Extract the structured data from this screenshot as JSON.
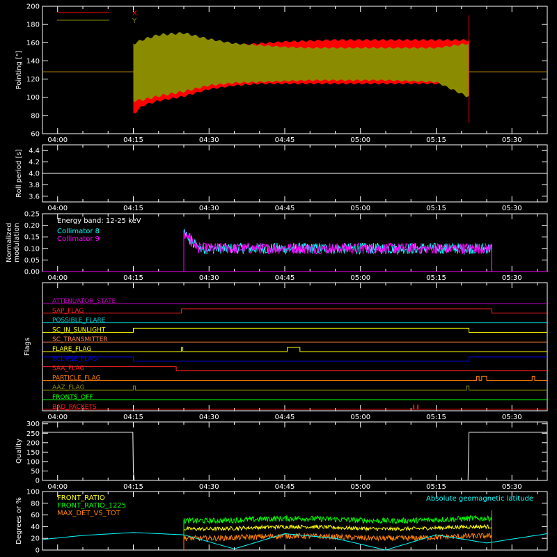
{
  "time_ticks": [
    "04:00",
    "04:15",
    "04:30",
    "04:45",
    "05:00",
    "05:15",
    "05:30"
  ],
  "chart_data": [
    {
      "type": "line",
      "ylabel": "Pointing [\"]",
      "ylim": [
        60,
        200
      ],
      "yticks": [
        60,
        80,
        100,
        120,
        140,
        160,
        180,
        200
      ],
      "x_unit": "minutes after 04:00",
      "xlim": [
        -3,
        97
      ],
      "legend": {
        "placement": "top-left",
        "entries": [
          {
            "name": "X",
            "color": "#ff0000"
          },
          {
            "name": "Y",
            "color": "#8b8b00"
          }
        ]
      },
      "series": [
        {
          "name": "X",
          "color": "#ff0000",
          "baseline": 128,
          "active_range": [
            15.0,
            81.5
          ],
          "envelope_x": [
            15,
            17,
            20,
            25,
            30,
            35,
            40,
            45,
            50,
            55,
            60,
            65,
            70,
            75,
            81
          ],
          "envelope_upper": [
            160,
            150,
            150,
            152,
            155,
            158,
            160,
            162,
            163,
            164,
            164,
            164,
            164,
            164,
            164
          ],
          "envelope_lower": [
            80,
            90,
            95,
            100,
            108,
            112,
            114,
            114,
            114,
            114,
            114,
            114,
            114,
            114,
            110
          ]
        },
        {
          "name": "Y",
          "color": "#8b8b00",
          "baseline": 128,
          "active_range": [
            15.0,
            81.5
          ],
          "envelope_x": [
            15,
            17,
            20,
            25,
            30,
            35,
            40,
            45,
            50,
            55,
            60,
            65,
            70,
            75,
            81
          ],
          "envelope_upper": [
            160,
            165,
            170,
            172,
            165,
            160,
            158,
            156,
            155,
            155,
            155,
            155,
            155,
            155,
            160
          ],
          "envelope_lower": [
            95,
            96,
            100,
            105,
            112,
            115,
            116,
            117,
            118,
            118,
            118,
            118,
            117,
            116,
            100
          ]
        }
      ]
    },
    {
      "type": "line",
      "ylabel": "Roll period [s]",
      "ylim": [
        3.5,
        4.5
      ],
      "yticks": [
        3.6,
        3.8,
        4.0,
        4.2,
        4.4
      ],
      "x_unit": "minutes after 04:00",
      "xlim": [
        -3,
        97
      ],
      "series": [
        {
          "name": "roll",
          "color": "#ffffff",
          "x": [
            -3,
            97
          ],
          "values": [
            4.0,
            4.0
          ]
        }
      ]
    },
    {
      "type": "line",
      "ylabel": "Normalized modulation",
      "ylim": [
        0,
        0.25
      ],
      "yticks": [
        0.0,
        0.05,
        0.1,
        0.15,
        0.2,
        0.25
      ],
      "x_unit": "minutes after 04:00",
      "xlim": [
        -3,
        97
      ],
      "annotation": "Energy band: 12-25 keV",
      "legend": {
        "placement": "top-left",
        "entries": [
          {
            "name": "Collimator 8",
            "color": "#00ffff"
          },
          {
            "name": "Collimator 9",
            "color": "#ff00ff"
          }
        ]
      },
      "series": [
        {
          "name": "Collimator 8",
          "color": "#00ffff",
          "active_range": [
            25.0,
            86.0
          ],
          "mean": 0.1,
          "spread": 0.03
        },
        {
          "name": "Collimator 9",
          "color": "#ff00ff",
          "active_range": [
            25.0,
            86.0
          ],
          "mean": 0.1,
          "spread": 0.03
        }
      ]
    },
    {
      "type": "line",
      "ylabel": "Flags",
      "x_unit": "minutes after 04:00",
      "xlim": [
        -3,
        97
      ],
      "flags": [
        {
          "name": "ATTENUATOR_STATE",
          "color": "#c000c0",
          "transitions": []
        },
        {
          "name": "SAP_FLAG",
          "color": "#ff2020",
          "transitions": [
            [
              24.5,
              1
            ],
            [
              86.0,
              0
            ]
          ]
        },
        {
          "name": "POSSIBLE_FLARE",
          "color": "#00d0d0",
          "transitions": []
        },
        {
          "name": "SC_IN_SUNLIGHT",
          "color": "#ffff00",
          "transitions": [
            [
              15.0,
              1
            ],
            [
              81.5,
              0
            ]
          ]
        },
        {
          "name": "SC_TRANSMITTER",
          "color": "#ff8040",
          "transitions": []
        },
        {
          "name": "FLARE_FLAG",
          "color": "#ffff00",
          "transitions": [
            [
              24.5,
              1
            ],
            [
              24.8,
              0
            ],
            [
              45.5,
              1
            ],
            [
              48.0,
              0
            ]
          ]
        },
        {
          "name": "ECLIPSE_FLAG",
          "color": "#0000ff",
          "transitions": [
            [
              15.0,
              0
            ],
            [
              81.5,
              1
            ]
          ]
        },
        {
          "name": "SAA_FLAG",
          "color": "#ff2020",
          "transitions": [
            [
              23.5,
              0
            ]
          ]
        },
        {
          "name": "PARTICLE_FLAG",
          "color": "#ff8000",
          "transitions": [
            [
              83.0,
              1
            ],
            [
              83.5,
              0
            ],
            [
              84.0,
              1
            ],
            [
              85.0,
              0
            ],
            [
              94.0,
              1
            ],
            [
              94.5,
              0
            ]
          ]
        },
        {
          "name": "AAZ_FLAG",
          "color": "#8b8b00",
          "transitions": [
            [
              15.0,
              1
            ],
            [
              15.4,
              0
            ],
            [
              81.0,
              1
            ],
            [
              81.5,
              0
            ]
          ]
        },
        {
          "name": "FRONTS_OFF",
          "color": "#00ff00",
          "transitions": []
        },
        {
          "name": "BAD_PACKETS",
          "color": "#ff2020",
          "transitions": [
            [
              70.5,
              1
            ],
            [
              70.6,
              0
            ],
            [
              71.3,
              1
            ],
            [
              71.4,
              0
            ]
          ]
        }
      ]
    },
    {
      "type": "line",
      "ylabel": "Quality",
      "ylim": [
        0,
        310
      ],
      "yticks": [
        0,
        50,
        100,
        150,
        200,
        250,
        300
      ],
      "x_unit": "minutes after 04:00",
      "xlim": [
        -3,
        97
      ],
      "series": [
        {
          "name": "quality",
          "color": "#ffffff",
          "x": [
            -3,
            14.9,
            15.0,
            15.2,
            81.3,
            81.5,
            97
          ],
          "values": [
            255,
            255,
            50,
            0,
            0,
            255,
            255
          ]
        }
      ]
    },
    {
      "type": "line",
      "ylabel": "Degrees or %",
      "ylim": [
        0,
        100
      ],
      "yticks": [
        0,
        20,
        40,
        60,
        80,
        100
      ],
      "x_unit": "minutes after 04:00",
      "xlim": [
        -3,
        97
      ],
      "legend": {
        "placement": "top-left",
        "entries": [
          {
            "name": "FRONT_RATIO",
            "color": "#ffff00"
          },
          {
            "name": "FRONT_RATIO_1225",
            "color": "#00ff00"
          },
          {
            "name": "MAX_DET_VS_TOT",
            "color": "#ff8000"
          }
        ]
      },
      "right_legend": {
        "name": "Absolute geomagnetic latitude",
        "color": "#00ffff"
      },
      "series": [
        {
          "name": "FRONT_RATIO",
          "color": "#ffff00",
          "active_range": [
            25.0,
            86.0
          ],
          "mean": 38,
          "spread": 4
        },
        {
          "name": "FRONT_RATIO_1225",
          "color": "#00ff00",
          "active_range": [
            25.0,
            86.0
          ],
          "mean": 52,
          "spread": 6
        },
        {
          "name": "MAX_DET_VS_TOT",
          "color": "#ff8000",
          "active_range": [
            25.0,
            86.0
          ],
          "mean": 22,
          "spread": 6
        },
        {
          "name": "Absolute geomagnetic latitude",
          "color": "#00ffff",
          "x": [
            -3,
            5,
            15,
            25,
            35,
            45,
            55,
            65,
            75,
            85,
            97
          ],
          "values": [
            18,
            25,
            30,
            26,
            2,
            28,
            20,
            0,
            26,
            12,
            28
          ]
        }
      ]
    }
  ]
}
